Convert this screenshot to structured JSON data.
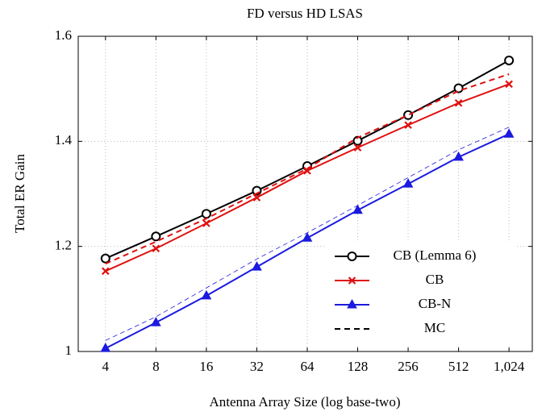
{
  "chart_data": {
    "type": "line",
    "title": "FD versus HD LSAS",
    "xlabel": "Antenna Array Size (log base-two)",
    "ylabel": "Total ER Gain",
    "x": [
      4,
      8,
      16,
      32,
      64,
      128,
      256,
      512,
      1024
    ],
    "xscale": "log2",
    "xlim": [
      2.75,
      1410
    ],
    "xticks": [
      4,
      8,
      16,
      32,
      64,
      128,
      256,
      512,
      {
        "value": 1024,
        "label": "1,024"
      }
    ],
    "ylim": [
      1,
      1.6
    ],
    "yticks": [
      1,
      1.2,
      1.4,
      1.6
    ],
    "grid": true,
    "legend": "lower right",
    "series": [
      {
        "name": "CB (Lemma 6)",
        "color": "#000000",
        "marker": "circle",
        "dash": "solid",
        "width": 2,
        "values": [
          1.177,
          1.219,
          1.262,
          1.306,
          1.353,
          1.401,
          1.45,
          1.501,
          1.554
        ]
      },
      {
        "name": "CB",
        "color": "#e01010",
        "marker": "x",
        "dash": "solid",
        "width": 2,
        "values": [
          1.153,
          1.196,
          1.244,
          1.293,
          1.344,
          1.388,
          1.431,
          1.473,
          1.509
        ]
      },
      {
        "name": "CB-N",
        "color": "#1a1ae0",
        "marker": "triangle",
        "dash": "solid",
        "width": 2,
        "values": [
          1.006,
          1.055,
          1.106,
          1.161,
          1.216,
          1.269,
          1.319,
          1.37,
          1.414
        ]
      },
      {
        "name": "MC",
        "color": "#e01010",
        "legend_color": "#000000",
        "marker": "none",
        "dash": "dashed",
        "width": 2,
        "values": [
          1.167,
          1.209,
          1.253,
          1.301,
          1.348,
          1.407,
          1.45,
          1.496,
          1.528
        ]
      },
      {
        "color": "#1a1ae0",
        "marker": "none",
        "dash": "dashed",
        "width": 0.8,
        "values": [
          1.021,
          1.066,
          1.121,
          1.176,
          1.226,
          1.278,
          1.331,
          1.384,
          1.427
        ]
      }
    ]
  }
}
